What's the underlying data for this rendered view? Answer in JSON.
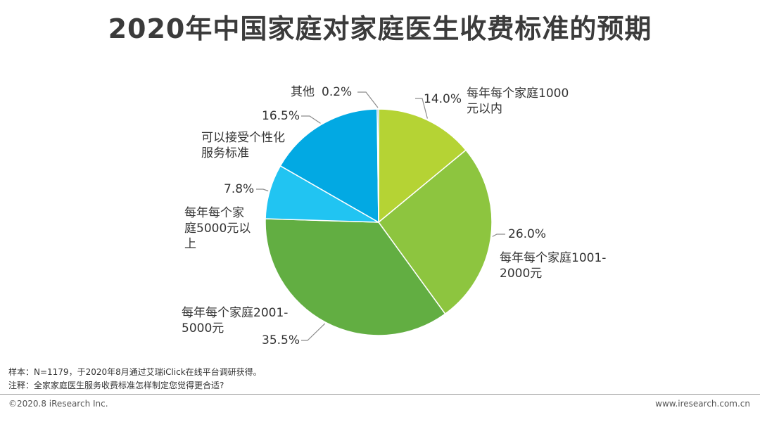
{
  "title": "2020年中国家庭对家庭医生收费标准的预期",
  "chart_data": {
    "type": "pie",
    "title": "2020年中国家庭对家庭医生收费标准的预期",
    "start_angle_deg": 0,
    "direction": "clockwise",
    "slices": [
      {
        "label": [
          "每年每个家庭1000",
          "元以内"
        ],
        "value": 14.0,
        "display": "14.0%",
        "color": "#b5d334"
      },
      {
        "label": [
          "每年每个家庭1001-",
          "2000元"
        ],
        "value": 26.0,
        "display": "26.0%",
        "color": "#8dc53f"
      },
      {
        "label": [
          "每年每个家庭2001-",
          "5000元"
        ],
        "value": 35.5,
        "display": "35.5%",
        "color": "#62ae42"
      },
      {
        "label": [
          "每年每个家",
          "庭5000元以",
          "上"
        ],
        "value": 7.8,
        "display": "7.8%",
        "color": "#21c4f2"
      },
      {
        "label": [
          "可以接受个性化",
          "服务标准"
        ],
        "value": 16.5,
        "display": "16.5%",
        "color": "#02a9e3"
      },
      {
        "label": [
          "其他"
        ],
        "value": 0.2,
        "display": "0.2%",
        "color": "#1a6fb5"
      }
    ]
  },
  "notes": {
    "sample": "样本：N=1179，于2020年8月通过艾瑞iClick在线平台调研获得。",
    "comment": "注释：全家家庭医生服务收费标准怎样制定您觉得更合适?"
  },
  "footer": {
    "copyright": "©2020.8 iResearch Inc.",
    "website": "www.iresearch.com.cn"
  }
}
